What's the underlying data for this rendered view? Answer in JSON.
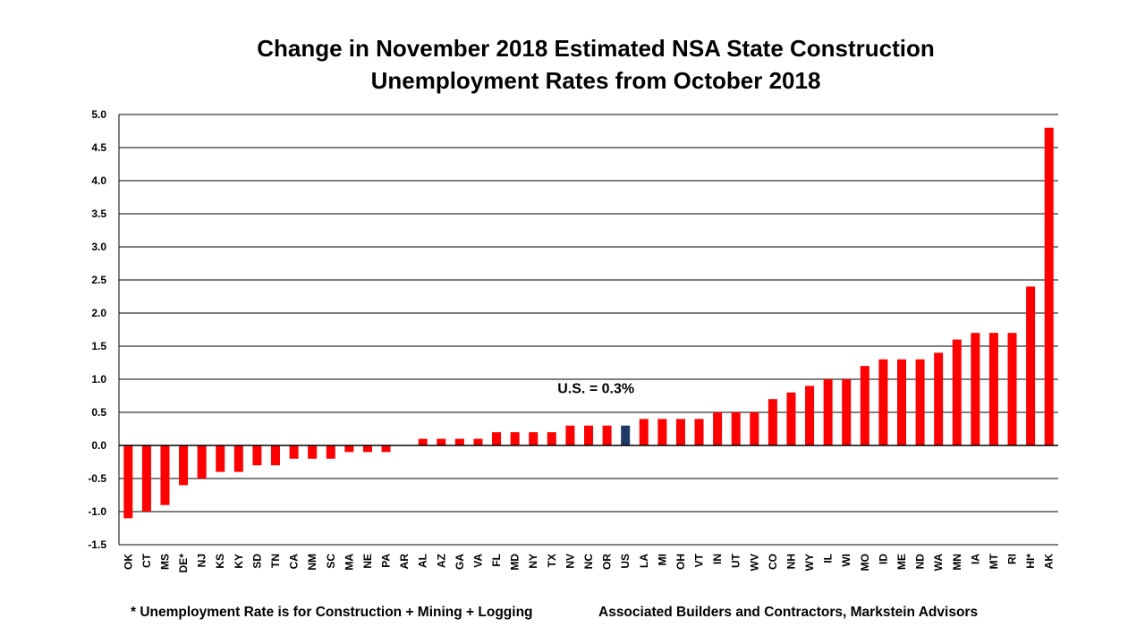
{
  "chart_data": {
    "type": "bar",
    "title_lines": [
      "Change in November 2018 Estimated NSA State Construction",
      "Unemployment Rates from October 2018"
    ],
    "categories": [
      "OK",
      "CT",
      "MS",
      "DE*",
      "NJ",
      "KS",
      "KY",
      "SD",
      "TN",
      "CA",
      "NM",
      "SC",
      "MA",
      "NE",
      "PA",
      "AR",
      "AL",
      "AZ",
      "GA",
      "VA",
      "FL",
      "MD",
      "NY",
      "TX",
      "NV",
      "NC",
      "OR",
      "US",
      "LA",
      "MI",
      "OH",
      "VT",
      "IN",
      "UT",
      "WV",
      "CO",
      "NH",
      "WY",
      "IL",
      "WI",
      "MO",
      "ID",
      "ME",
      "ND",
      "WA",
      "MN",
      "IA",
      "MT",
      "RI",
      "HI*",
      "AK"
    ],
    "values": [
      -1.1,
      -1.0,
      -0.9,
      -0.6,
      -0.5,
      -0.4,
      -0.4,
      -0.3,
      -0.3,
      -0.2,
      -0.2,
      -0.2,
      -0.1,
      -0.1,
      -0.1,
      0.0,
      0.1,
      0.1,
      0.1,
      0.1,
      0.2,
      0.2,
      0.2,
      0.2,
      0.3,
      0.3,
      0.3,
      0.3,
      0.4,
      0.4,
      0.4,
      0.4,
      0.5,
      0.5,
      0.5,
      0.7,
      0.8,
      0.9,
      1.0,
      1.0,
      1.2,
      1.3,
      1.3,
      1.3,
      1.4,
      1.6,
      1.7,
      1.7,
      1.7,
      2.4,
      4.8
    ],
    "highlight_category": "US",
    "colors": {
      "bar": "#ff0000",
      "highlight": "#1f3864",
      "grid": "#000000",
      "axis": "#000000"
    },
    "ylim": [
      -1.5,
      5.0
    ],
    "yticks": [
      "5.0",
      "4.5",
      "4.0",
      "3.5",
      "3.0",
      "2.5",
      "2.0",
      "1.5",
      "1.0",
      "0.5",
      "0.0",
      "-0.5",
      "-1.0",
      "-1.5"
    ],
    "grid": true,
    "legend": "none",
    "annotation": {
      "text": "U.S. = 0.3%",
      "x_category": "US",
      "y": 0.75
    },
    "xlabel": "",
    "ylabel": ""
  },
  "footnotes": {
    "left": "* Unemployment Rate is for Construction + Mining + Logging",
    "right": "Associated Builders and Contractors, Markstein Advisors"
  }
}
